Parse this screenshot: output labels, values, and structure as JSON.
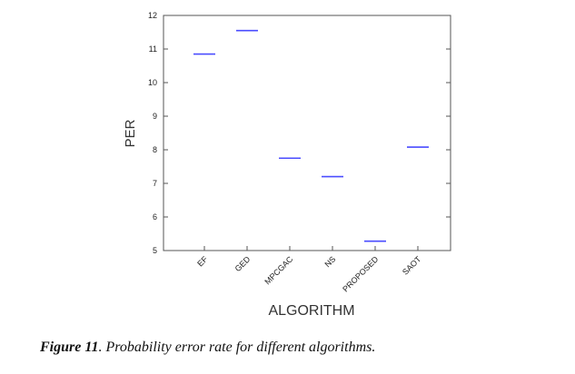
{
  "chart_data": {
    "type": "scatter",
    "marker": "horizontal-dash",
    "categories": [
      "EF",
      "GED",
      "MPCGAC",
      "NS",
      "PROPOSED",
      "SAOT"
    ],
    "values": [
      10.85,
      11.55,
      7.75,
      7.2,
      5.28,
      8.08
    ],
    "series_color": "#4a4cff",
    "xlabel": "ALGORITHM",
    "ylabel": "PER",
    "ylim": [
      5,
      12
    ],
    "yticks": [
      5,
      6,
      7,
      8,
      9,
      10,
      11,
      12
    ],
    "grid": false
  },
  "caption": {
    "label": "Figure 11",
    "text": ". Probability error rate for different algorithms."
  }
}
